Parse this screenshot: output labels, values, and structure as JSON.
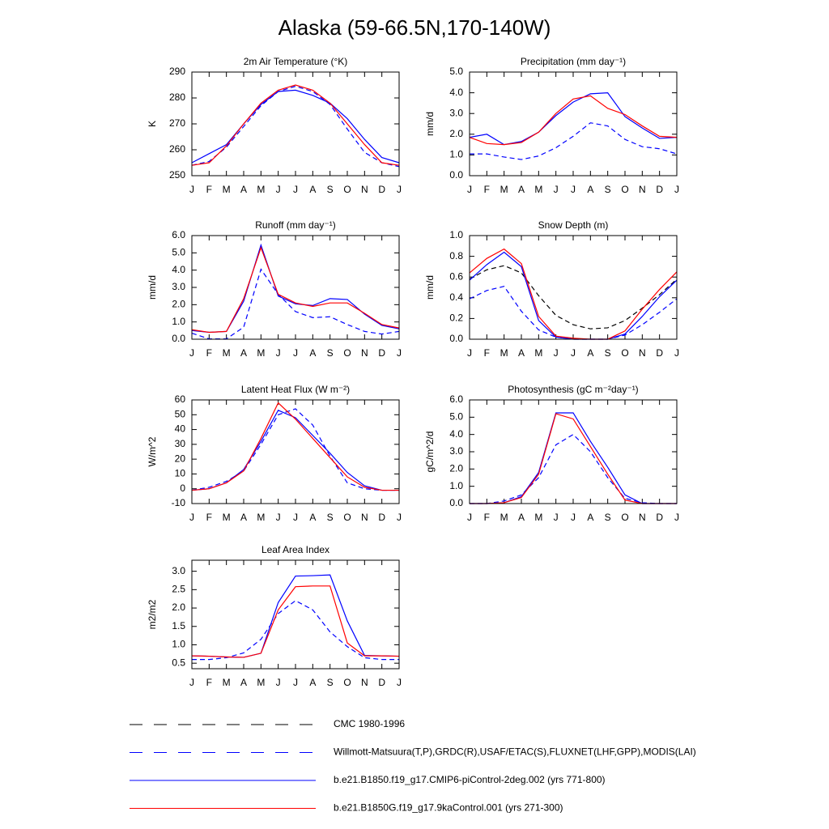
{
  "title": "Alaska (59-66.5N,170-140W)",
  "chart_data": [
    {
      "type": "line",
      "title": "2m Air Temperature (°K)",
      "ylabel": "K",
      "categories": [
        "J",
        "F",
        "M",
        "A",
        "M",
        "J",
        "J",
        "A",
        "S",
        "O",
        "N",
        "D",
        "J"
      ],
      "ylim": [
        250,
        290
      ],
      "yticks": [
        250,
        260,
        270,
        280,
        290
      ],
      "series": [
        {
          "name": "Willmott-Matsuura(T,P),GRDC(R),USAF/ETAC(S),FLUXNET(LHF,GPP),MODIS(LAI)",
          "color": "#0000ff",
          "dash": true,
          "values": [
            254,
            255.5,
            261,
            269,
            277,
            282.5,
            284.5,
            282.5,
            277.5,
            268,
            259,
            255,
            253.5
          ]
        },
        {
          "name": "b.e21.B1850.f19_g17.CMIP6-piControl-2deg.002 (yrs 771-800)",
          "color": "#0000ff",
          "dash": false,
          "values": [
            255,
            258.5,
            262,
            270,
            277.5,
            282.5,
            283,
            281,
            278,
            272,
            264,
            257,
            255
          ]
        },
        {
          "name": "b.e21.B1850G.f19_g17.9kaControl.001 (yrs 271-300)",
          "color": "#ff0000",
          "dash": false,
          "values": [
            254,
            255,
            261.5,
            270,
            278,
            283,
            285,
            283,
            278,
            270,
            262,
            255,
            254
          ]
        }
      ]
    },
    {
      "type": "line",
      "title": "Precipitation (mm day⁻¹)",
      "ylabel": "mm/d",
      "categories": [
        "J",
        "F",
        "M",
        "A",
        "M",
        "J",
        "J",
        "A",
        "S",
        "O",
        "N",
        "D",
        "J"
      ],
      "ylim": [
        0,
        5
      ],
      "yticks": [
        {
          "value": 0,
          "label": "0.0"
        },
        {
          "value": 1,
          "label": "1.0"
        },
        {
          "value": 2,
          "label": "2.0"
        },
        {
          "value": 3,
          "label": "3.0"
        },
        {
          "value": 4,
          "label": "4.0"
        },
        {
          "value": 5,
          "label": "5.0"
        }
      ],
      "series": [
        {
          "name": "Willmott-Matsuura(T,P),GRDC(R),USAF/ETAC(S),FLUXNET(LHF,GPP),MODIS(LAI)",
          "color": "#0000ff",
          "dash": true,
          "values": [
            1.05,
            1.05,
            0.9,
            0.78,
            0.95,
            1.35,
            1.9,
            2.55,
            2.4,
            1.75,
            1.4,
            1.3,
            1.05
          ]
        },
        {
          "name": "b.e21.B1850.f19_g17.CMIP6-piControl-2deg.002 (yrs 771-800)",
          "color": "#0000ff",
          "dash": false,
          "values": [
            1.85,
            2.0,
            1.5,
            1.65,
            2.1,
            2.9,
            3.55,
            3.95,
            4.0,
            2.85,
            2.3,
            1.8,
            1.85
          ]
        },
        {
          "name": "b.e21.B1850G.f19_g17.9kaControl.001 (yrs 271-300)",
          "color": "#ff0000",
          "dash": false,
          "values": [
            1.85,
            1.55,
            1.5,
            1.6,
            2.1,
            3.0,
            3.7,
            3.85,
            3.25,
            2.95,
            2.4,
            1.9,
            1.85
          ]
        }
      ]
    },
    {
      "type": "line",
      "title": "Runoff (mm day⁻¹)",
      "ylabel": "mm/d",
      "categories": [
        "J",
        "F",
        "M",
        "A",
        "M",
        "J",
        "J",
        "A",
        "S",
        "O",
        "N",
        "D",
        "J"
      ],
      "ylim": [
        0,
        6
      ],
      "yticks": [
        {
          "value": 0,
          "label": "0.0"
        },
        {
          "value": 1,
          "label": "1.0"
        },
        {
          "value": 2,
          "label": "2.0"
        },
        {
          "value": 3,
          "label": "3.0"
        },
        {
          "value": 4,
          "label": "4.0"
        },
        {
          "value": 5,
          "label": "5.0"
        },
        {
          "value": 6,
          "label": "6.0"
        }
      ],
      "series": [
        {
          "name": "Willmott-Matsuura(T,P),GRDC(R),USAF/ETAC(S),FLUXNET(LHF,GPP),MODIS(LAI)",
          "color": "#0000ff",
          "dash": true,
          "values": [
            0.35,
            0.02,
            0.02,
            0.7,
            4.05,
            2.6,
            1.6,
            1.25,
            1.3,
            0.85,
            0.45,
            0.3,
            0.45
          ]
        },
        {
          "name": "b.e21.B1850.f19_g17.CMIP6-piControl-2deg.002 (yrs 771-800)",
          "color": "#0000ff",
          "dash": false,
          "values": [
            0.5,
            0.4,
            0.45,
            2.2,
            5.45,
            2.5,
            2.05,
            1.95,
            2.35,
            2.3,
            1.45,
            0.8,
            0.6
          ]
        },
        {
          "name": "b.e21.B1850G.f19_g17.9kaControl.001 (yrs 271-300)",
          "color": "#ff0000",
          "dash": false,
          "values": [
            0.55,
            0.4,
            0.45,
            2.35,
            5.3,
            2.6,
            2.1,
            1.9,
            2.1,
            2.1,
            1.5,
            0.85,
            0.65
          ]
        }
      ]
    },
    {
      "type": "line",
      "title": "Snow Depth (m)",
      "ylabel": "mm/d",
      "categories": [
        "J",
        "F",
        "M",
        "A",
        "M",
        "J",
        "J",
        "A",
        "S",
        "O",
        "N",
        "D",
        "J"
      ],
      "ylim": [
        0,
        1
      ],
      "yticks": [
        {
          "value": 0,
          "label": "0.0"
        },
        {
          "value": 0.2,
          "label": "0.2"
        },
        {
          "value": 0.4,
          "label": "0.4"
        },
        {
          "value": 0.6,
          "label": "0.6"
        },
        {
          "value": 0.8,
          "label": "0.8"
        },
        {
          "value": 1,
          "label": "1.0"
        }
      ],
      "series": [
        {
          "name": "CMC 1980-1996",
          "color": "#000000",
          "dash": true,
          "values": [
            0.58,
            0.67,
            0.71,
            0.64,
            0.42,
            0.23,
            0.14,
            0.1,
            0.11,
            0.18,
            0.3,
            0.43,
            0.58
          ]
        },
        {
          "name": "Willmott-Matsuura(T,P),GRDC(R),USAF/ETAC(S),FLUXNET(LHF,GPP),MODIS(LAI)",
          "color": "#0000ff",
          "dash": true,
          "values": [
            0.39,
            0.47,
            0.51,
            0.27,
            0.09,
            0.02,
            0,
            0,
            0,
            0.04,
            0.14,
            0.26,
            0.39
          ]
        },
        {
          "name": "b.e21.B1850.f19_g17.CMIP6-piControl-2deg.002 (yrs 771-800)",
          "color": "#0000ff",
          "dash": false,
          "values": [
            0.57,
            0.72,
            0.84,
            0.7,
            0.18,
            0.02,
            0,
            0,
            0,
            0.05,
            0.22,
            0.41,
            0.57
          ]
        },
        {
          "name": "b.e21.B1850G.f19_g17.9kaControl.001 (yrs 271-300)",
          "color": "#ff0000",
          "dash": false,
          "values": [
            0.64,
            0.78,
            0.87,
            0.73,
            0.22,
            0.03,
            0.01,
            0,
            0,
            0.08,
            0.29,
            0.48,
            0.65
          ]
        }
      ]
    },
    {
      "type": "line",
      "title": "Latent Heat Flux (W m⁻²)",
      "ylabel": "W/m^2",
      "categories": [
        "J",
        "F",
        "M",
        "A",
        "M",
        "J",
        "J",
        "A",
        "S",
        "O",
        "N",
        "D",
        "J"
      ],
      "ylim": [
        -10,
        60
      ],
      "yticks": [
        -10,
        0,
        10,
        20,
        30,
        40,
        50,
        60
      ],
      "series": [
        {
          "name": "Willmott-Matsuura(T,P),GRDC(R),USAF/ETAC(S),FLUXNET(LHF,GPP),MODIS(LAI)",
          "color": "#0000ff",
          "dash": true,
          "values": [
            -1,
            1,
            5,
            12,
            30,
            50,
            54,
            43,
            22,
            4,
            0,
            -1,
            -1
          ]
        },
        {
          "name": "b.e21.B1850.f19_g17.CMIP6-piControl-2deg.002 (yrs 771-800)",
          "color": "#0000ff",
          "dash": false,
          "values": [
            -1,
            0,
            4,
            13,
            32,
            53,
            48,
            36,
            24,
            11,
            2,
            -1,
            -1
          ]
        },
        {
          "name": "b.e21.B1850G.f19_g17.9kaControl.001 (yrs 271-300)",
          "color": "#ff0000",
          "dash": false,
          "values": [
            -1,
            0,
            4,
            12,
            34,
            58,
            47,
            34,
            21,
            8,
            1,
            -1,
            -1
          ]
        }
      ]
    },
    {
      "type": "line",
      "title": "Photosynthesis (gC m⁻²day⁻¹)",
      "ylabel": "gC/m^2/d",
      "categories": [
        "J",
        "F",
        "M",
        "A",
        "M",
        "J",
        "J",
        "A",
        "S",
        "O",
        "N",
        "D",
        "J"
      ],
      "ylim": [
        0,
        6
      ],
      "yticks": [
        {
          "value": 0,
          "label": "0.0"
        },
        {
          "value": 1,
          "label": "1.0"
        },
        {
          "value": 2,
          "label": "2.0"
        },
        {
          "value": 3,
          "label": "3.0"
        },
        {
          "value": 4,
          "label": "4.0"
        },
        {
          "value": 5,
          "label": "5.0"
        },
        {
          "value": 6,
          "label": "6.0"
        }
      ],
      "series": [
        {
          "name": "Willmott-Matsuura(T,P),GRDC(R),USAF/ETAC(S),FLUXNET(LHF,GPP),MODIS(LAI)",
          "color": "#0000ff",
          "dash": true,
          "values": [
            0,
            0,
            0.15,
            0.5,
            1.5,
            3.4,
            4.0,
            3.0,
            1.5,
            0.3,
            0.05,
            0,
            0
          ]
        },
        {
          "name": "b.e21.B1850.f19_g17.CMIP6-piControl-2deg.002 (yrs 771-800)",
          "color": "#0000ff",
          "dash": false,
          "values": [
            0,
            0,
            0.05,
            0.4,
            1.8,
            5.25,
            5.25,
            3.6,
            2.1,
            0.5,
            0,
            0,
            0
          ]
        },
        {
          "name": "b.e21.B1850G.f19_g17.9kaControl.001 (yrs 271-300)",
          "color": "#ff0000",
          "dash": false,
          "values": [
            0,
            0,
            0.05,
            0.35,
            1.7,
            5.2,
            4.9,
            3.3,
            1.7,
            0.2,
            0,
            0,
            0
          ]
        }
      ]
    },
    {
      "type": "line",
      "title": "Leaf Area Index",
      "ylabel": "m2/m2",
      "categories": [
        "J",
        "F",
        "M",
        "A",
        "M",
        "J",
        "J",
        "A",
        "S",
        "O",
        "N",
        "D",
        "J"
      ],
      "ylim": [
        0.35,
        3.3
      ],
      "yticks": [
        0.5,
        {
          "value": 1,
          "label": "1.0"
        },
        1.5,
        {
          "value": 2,
          "label": "2.0"
        },
        2.5,
        {
          "value": 3,
          "label": "3.0"
        }
      ],
      "series": [
        {
          "name": "Willmott-Matsuura(T,P),GRDC(R),USAF/ETAC(S),FLUXNET(LHF,GPP),MODIS(LAI)",
          "color": "#0000ff",
          "dash": true,
          "values": [
            0.6,
            0.6,
            0.65,
            0.78,
            1.15,
            1.85,
            2.2,
            1.95,
            1.35,
            0.95,
            0.65,
            0.6,
            0.6
          ]
        },
        {
          "name": "b.e21.B1850.f19_g17.CMIP6-piControl-2deg.002 (yrs 771-800)",
          "color": "#0000ff",
          "dash": false,
          "values": [
            0.7,
            0.69,
            0.67,
            0.66,
            0.77,
            2.15,
            2.87,
            2.88,
            2.9,
            1.65,
            0.71,
            0.7,
            0.69
          ]
        },
        {
          "name": "b.e21.B1850G.f19_g17.9kaControl.001 (yrs 271-300)",
          "color": "#ff0000",
          "dash": false,
          "values": [
            0.7,
            0.69,
            0.67,
            0.66,
            0.77,
            1.95,
            2.58,
            2.6,
            2.6,
            1.05,
            0.7,
            0.7,
            0.69
          ]
        }
      ]
    }
  ]
}
